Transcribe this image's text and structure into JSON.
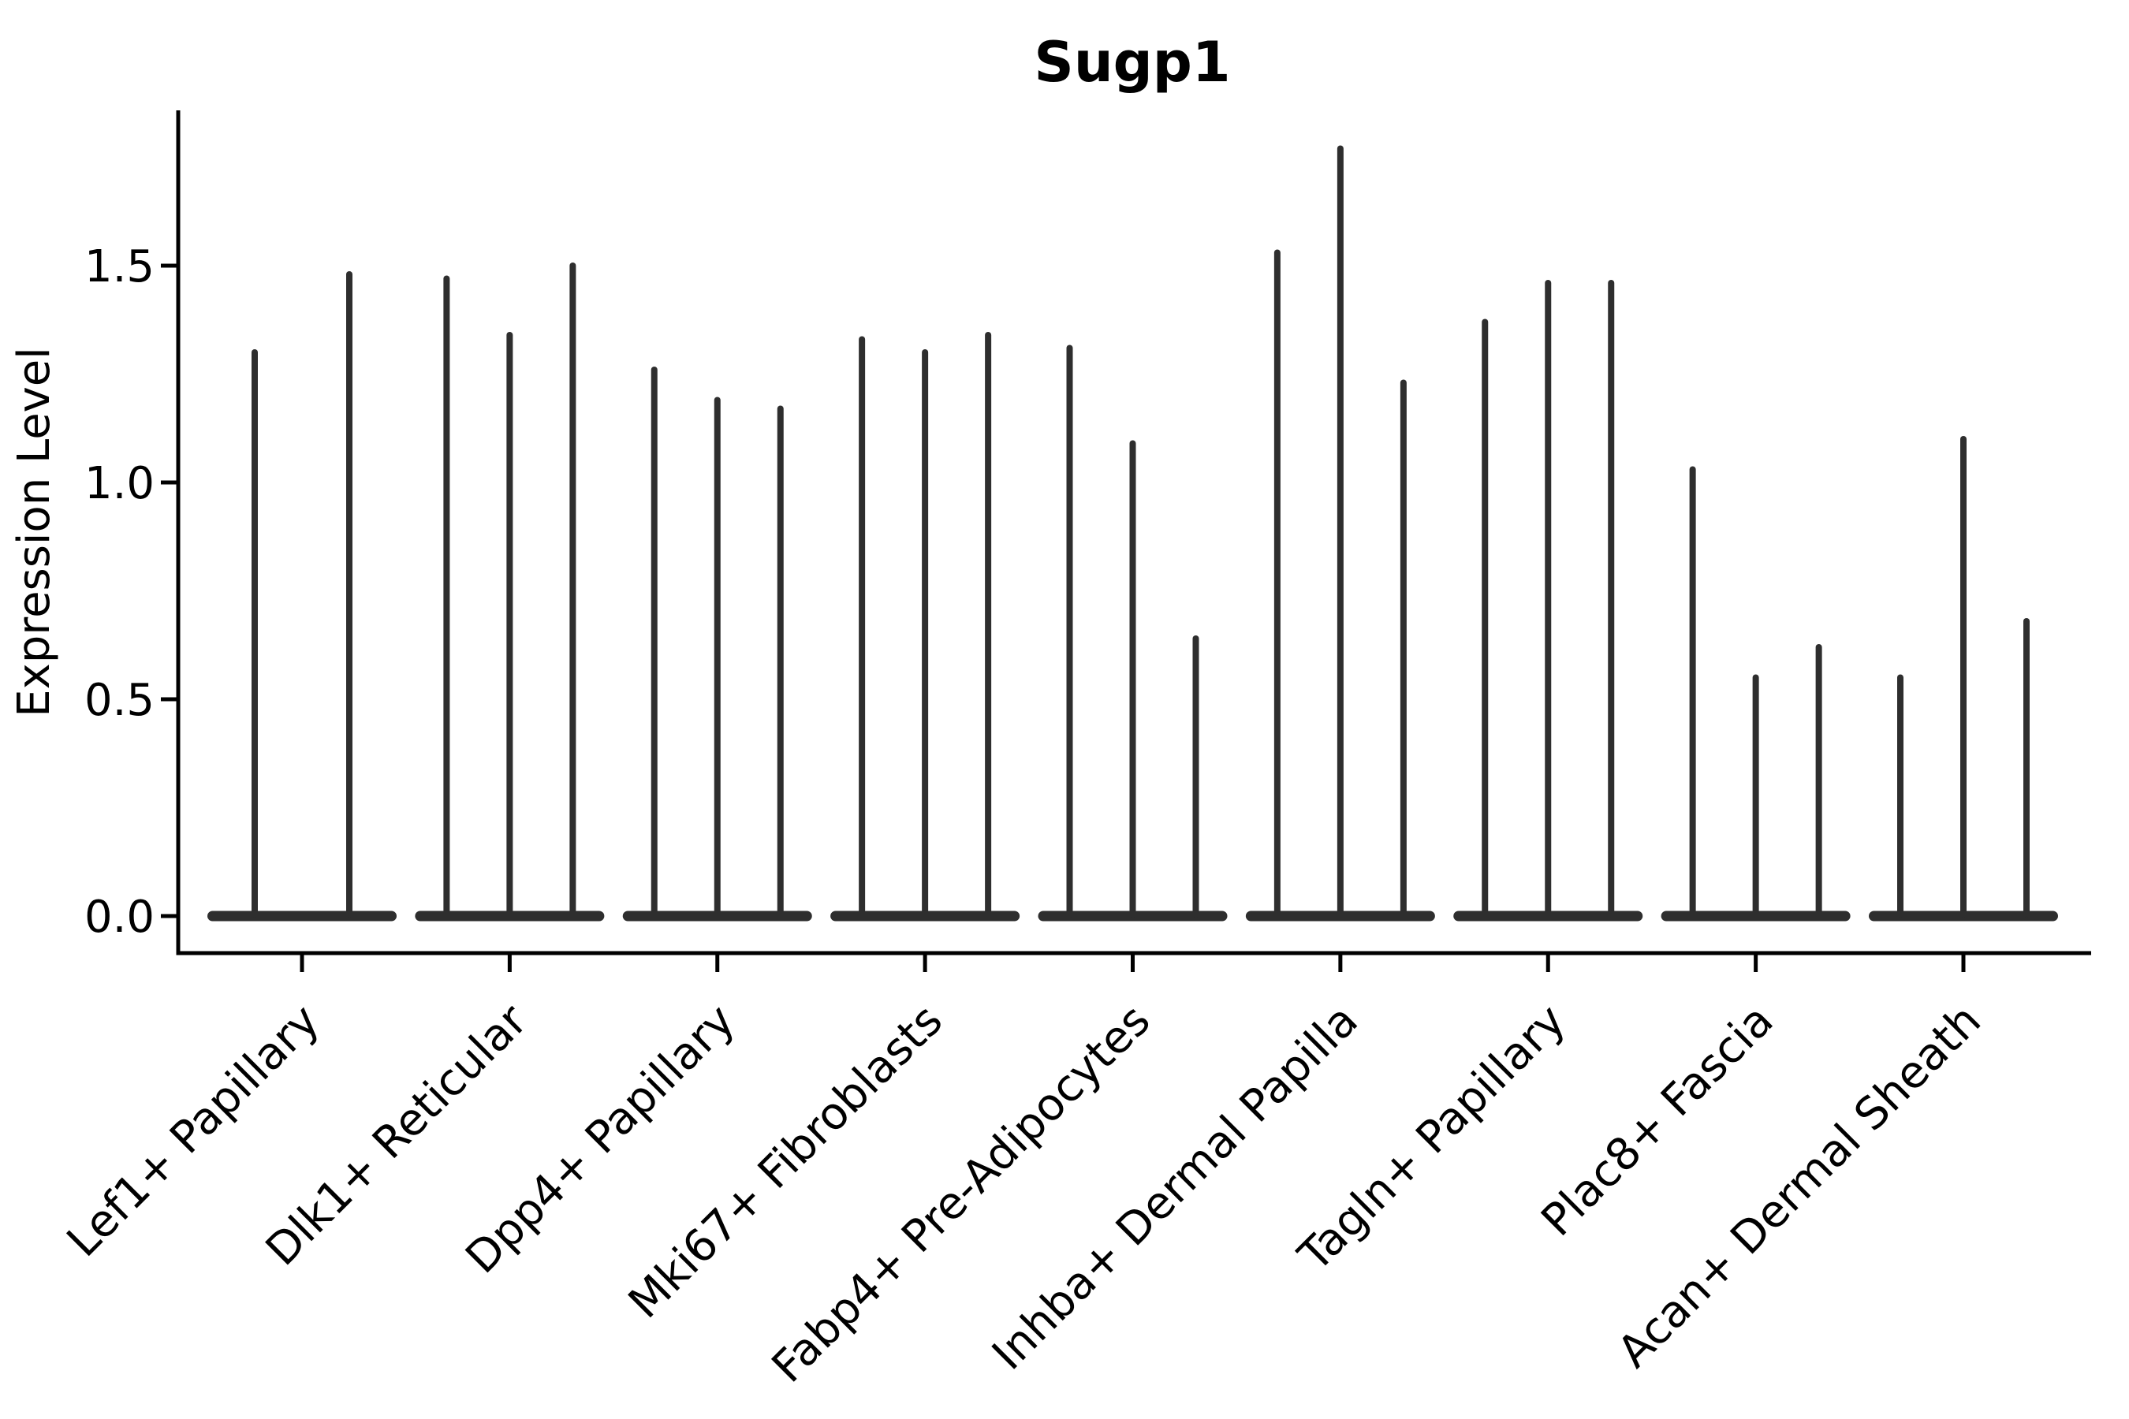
{
  "figure": {
    "title": "Sugp1"
  },
  "chart_data": {
    "type": "violin",
    "title": "Sugp1",
    "xlabel": "",
    "ylabel": "Expression Level",
    "grid": false,
    "legend": null,
    "background": "#ffffff",
    "ylim": [
      -0.085,
      1.858
    ],
    "ytick_values": [
      0.0,
      0.5,
      1.0,
      1.5
    ],
    "ytick_labels": [
      "0.0",
      "0.5",
      "1.0",
      "1.5"
    ],
    "categories": [
      "Lef1+ Papillary",
      "Dlk1+ Reticular",
      "Dpp4+ Papillary",
      "Mki67+ Fibroblasts",
      "Fabp4+ Pre-Adipocytes",
      "Inhba+ Dermal Papilla",
      "Tagln+ Papillary",
      "Plac8+ Fascia",
      "Acan+ Dermal Sheath"
    ],
    "groups": [
      {
        "category": "Lef1+ Papillary",
        "violin_maxima": [
          1.3,
          1.48
        ],
        "baseline_value": 0.0
      },
      {
        "category": "Dlk1+ Reticular",
        "violin_maxima": [
          1.47,
          1.34,
          1.5
        ],
        "baseline_value": 0.0
      },
      {
        "category": "Dpp4+ Papillary",
        "violin_maxima": [
          1.26,
          1.19,
          1.17
        ],
        "baseline_value": 0.0
      },
      {
        "category": "Mki67+ Fibroblasts",
        "violin_maxima": [
          1.33,
          1.3,
          1.34
        ],
        "baseline_value": 0.0
      },
      {
        "category": "Fabp4+ Pre-Adipocytes",
        "violin_maxima": [
          1.31,
          1.09,
          0.64
        ],
        "baseline_value": 0.0
      },
      {
        "category": "Inhba+ Dermal Papilla",
        "violin_maxima": [
          1.53,
          1.77,
          1.23
        ],
        "baseline_value": 0.0
      },
      {
        "category": "Tagln+ Papillary",
        "violin_maxima": [
          1.37,
          1.46,
          1.46
        ],
        "baseline_value": 0.0
      },
      {
        "category": "Plac8+ Fascia",
        "violin_maxima": [
          1.03,
          0.55,
          0.62
        ],
        "baseline_value": 0.0
      },
      {
        "category": "Acan+ Dermal Sheath",
        "violin_maxima": [
          0.55,
          1.1,
          0.68
        ],
        "baseline_value": 0.0
      }
    ],
    "style": {
      "violin_color": "#2e2e2e",
      "axis_color": "#000000",
      "text_color": "#000000"
    }
  }
}
